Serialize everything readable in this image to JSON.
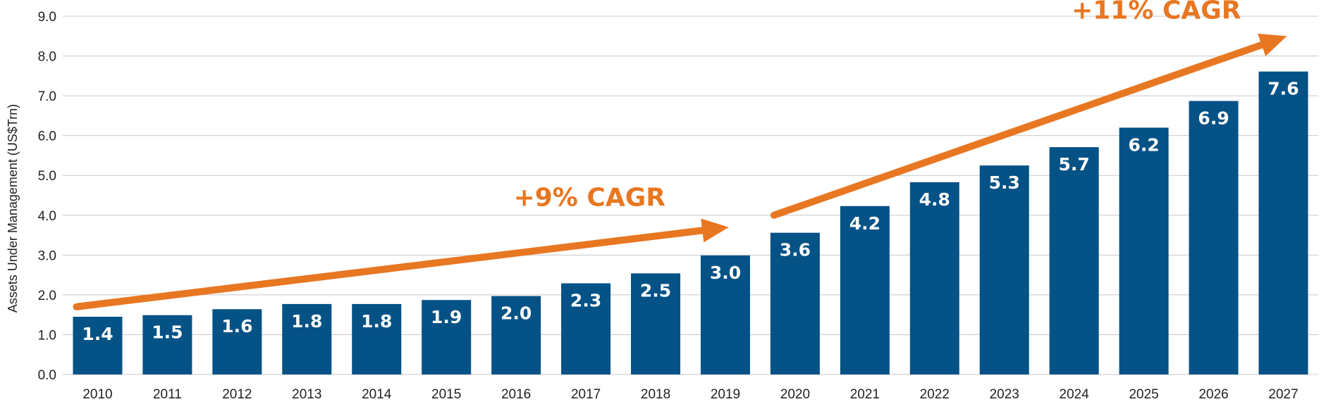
{
  "chart_data": {
    "type": "bar",
    "ylabel": "Assets Under Management (US$Trn)",
    "ylim": [
      0,
      9
    ],
    "yticks": [
      "0.0",
      "1.0",
      "2.0",
      "3.0",
      "4.0",
      "5.0",
      "6.0",
      "7.0",
      "8.0",
      "9.0"
    ],
    "grid": true,
    "categories": [
      "2010",
      "2011",
      "2012",
      "2013",
      "2014",
      "2015",
      "2016",
      "2017",
      "2018",
      "2019",
      "2020",
      "2021",
      "2022",
      "2023",
      "2024",
      "2025",
      "2026",
      "2027"
    ],
    "values": [
      1.45,
      1.49,
      1.64,
      1.77,
      1.77,
      1.87,
      1.97,
      2.29,
      2.54,
      2.99,
      3.56,
      4.23,
      4.83,
      5.25,
      5.71,
      6.2,
      6.87,
      7.61
    ],
    "data_labels": [
      "1.4",
      "1.5",
      "1.6",
      "1.8",
      "1.8",
      "1.9",
      "2.0",
      "2.3",
      "2.5",
      "3.0",
      "3.6",
      "4.2",
      "4.8",
      "5.3",
      "5.7",
      "6.2",
      "6.9",
      "7.6"
    ],
    "annotations": [
      {
        "text": "+9% CAGR",
        "from_category": "2010",
        "to_category": "2019",
        "from_value": 1.7,
        "to_value": 3.7
      },
      {
        "text": "+11% CAGR",
        "from_category": "2020",
        "to_category": "2027",
        "from_value": 4.0,
        "to_value": 8.5
      }
    ],
    "colors": {
      "bar": "#045286",
      "arrow": "#E87722",
      "grid": "#c8c8c8"
    }
  }
}
